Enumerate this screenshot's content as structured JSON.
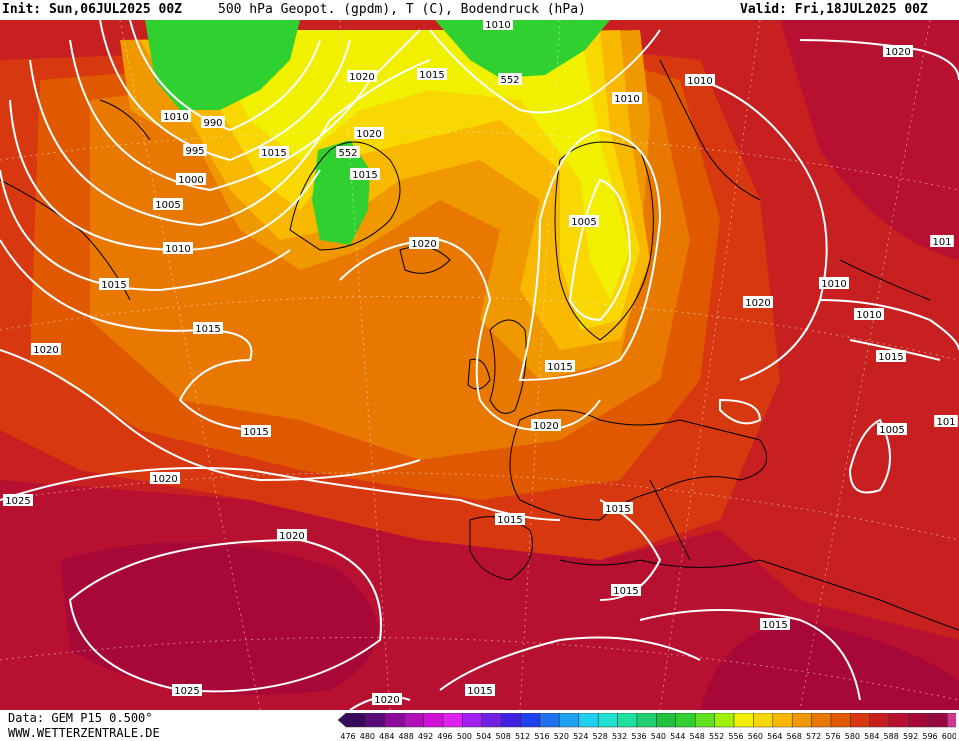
{
  "header": {
    "init": "Init: Sun,06JUL2025 00Z",
    "title": "500 hPa Geopot. (gpdm), T (C), Bodendruck (hPa)",
    "valid": "Valid: Fri,18JUL2025 00Z"
  },
  "footer": {
    "data_source": "Data: GEM P15 0.500°",
    "website": "WWW.WETTERZENTRALE.DE"
  },
  "legend": {
    "values": [
      "476",
      "480",
      "484",
      "488",
      "492",
      "496",
      "500",
      "504",
      "508",
      "512",
      "516",
      "520",
      "524",
      "528",
      "532",
      "536",
      "540",
      "544",
      "548",
      "552",
      "556",
      "560",
      "564",
      "568",
      "572",
      "576",
      "580",
      "584",
      "588",
      "592",
      "596",
      "600"
    ],
    "colors": [
      "#3a0a5a",
      "#5a0a7a",
      "#8a0a9a",
      "#b010b8",
      "#d010d8",
      "#e020f0",
      "#a020f0",
      "#7020e0",
      "#4020e0",
      "#2040f0",
      "#2070f0",
      "#20a0f0",
      "#20d0f0",
      "#20e0d0",
      "#20e0a0",
      "#20d070",
      "#20c040",
      "#30d030",
      "#60e020",
      "#a0f000",
      "#f0f000",
      "#f8d800",
      "#f8b800",
      "#f09800",
      "#e87800",
      "#e05800",
      "#d83810",
      "#c82020",
      "#b81030",
      "#a80838",
      "#980840",
      "#d03890"
    ]
  },
  "pressure_labels": [
    "1010",
    "1020",
    "1015",
    "552",
    "990",
    "995",
    "1000",
    "1005",
    "1010",
    "1015",
    "1020",
    "1015",
    "1020",
    "552",
    "1015",
    "1020",
    "1005",
    "1015",
    "1010",
    "1010",
    "1010",
    "1015",
    "1020",
    "1015",
    "1020",
    "1015",
    "1020",
    "1025",
    "1020",
    "1015",
    "1015",
    "1025",
    "1020",
    "1015",
    "1005",
    "101",
    "1020",
    "1010",
    "1015",
    "101",
    "1010",
    "1015"
  ]
}
